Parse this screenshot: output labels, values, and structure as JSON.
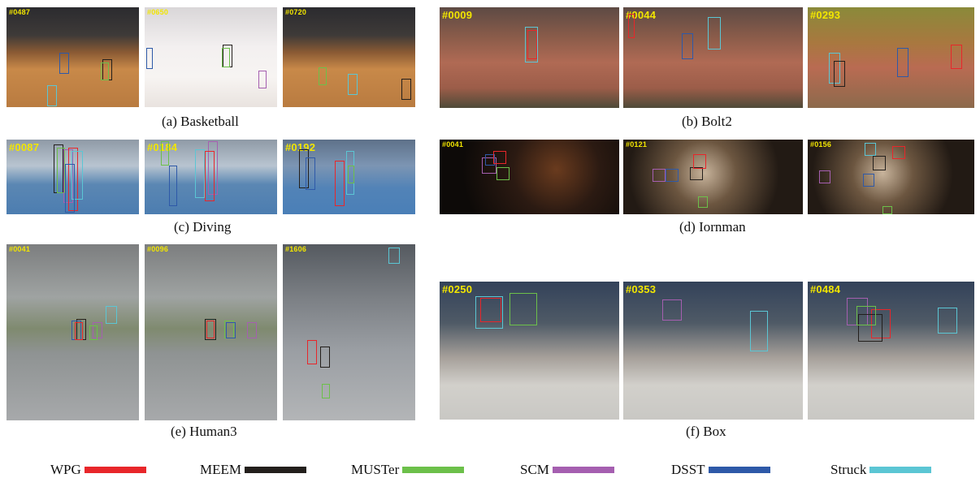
{
  "captions": {
    "a": "(a) Basketball",
    "b": "(b) Bolt2",
    "c": "(c) Diving",
    "d": "(d) Iornman",
    "e": "(e) Human3",
    "f": "(f) Box"
  },
  "frames": {
    "a1": "#0487",
    "a2": "#0650",
    "a3": "#0720",
    "b1": "#0009",
    "b2": "#0044",
    "b3": "#0293",
    "c1": "#0087",
    "c2": "#0184",
    "c3": "#0192",
    "d1": "#0041",
    "d2": "#0121",
    "d3": "#0156",
    "e1": "#0041",
    "e2": "#0096",
    "e3": "#1606",
    "f1": "#0250",
    "f2": "#0353",
    "f3": "#0484"
  },
  "legend": [
    {
      "label": "WPG",
      "color": "#e8262a"
    },
    {
      "label": "MEEM",
      "color": "#231f1c"
    },
    {
      "label": "MUSTer",
      "color": "#6cc04a"
    },
    {
      "label": "SCM",
      "color": "#a55fb0"
    },
    {
      "label": "DSST",
      "color": "#2e59a8"
    },
    {
      "label": "Struck",
      "color": "#5bc6d4"
    }
  ]
}
